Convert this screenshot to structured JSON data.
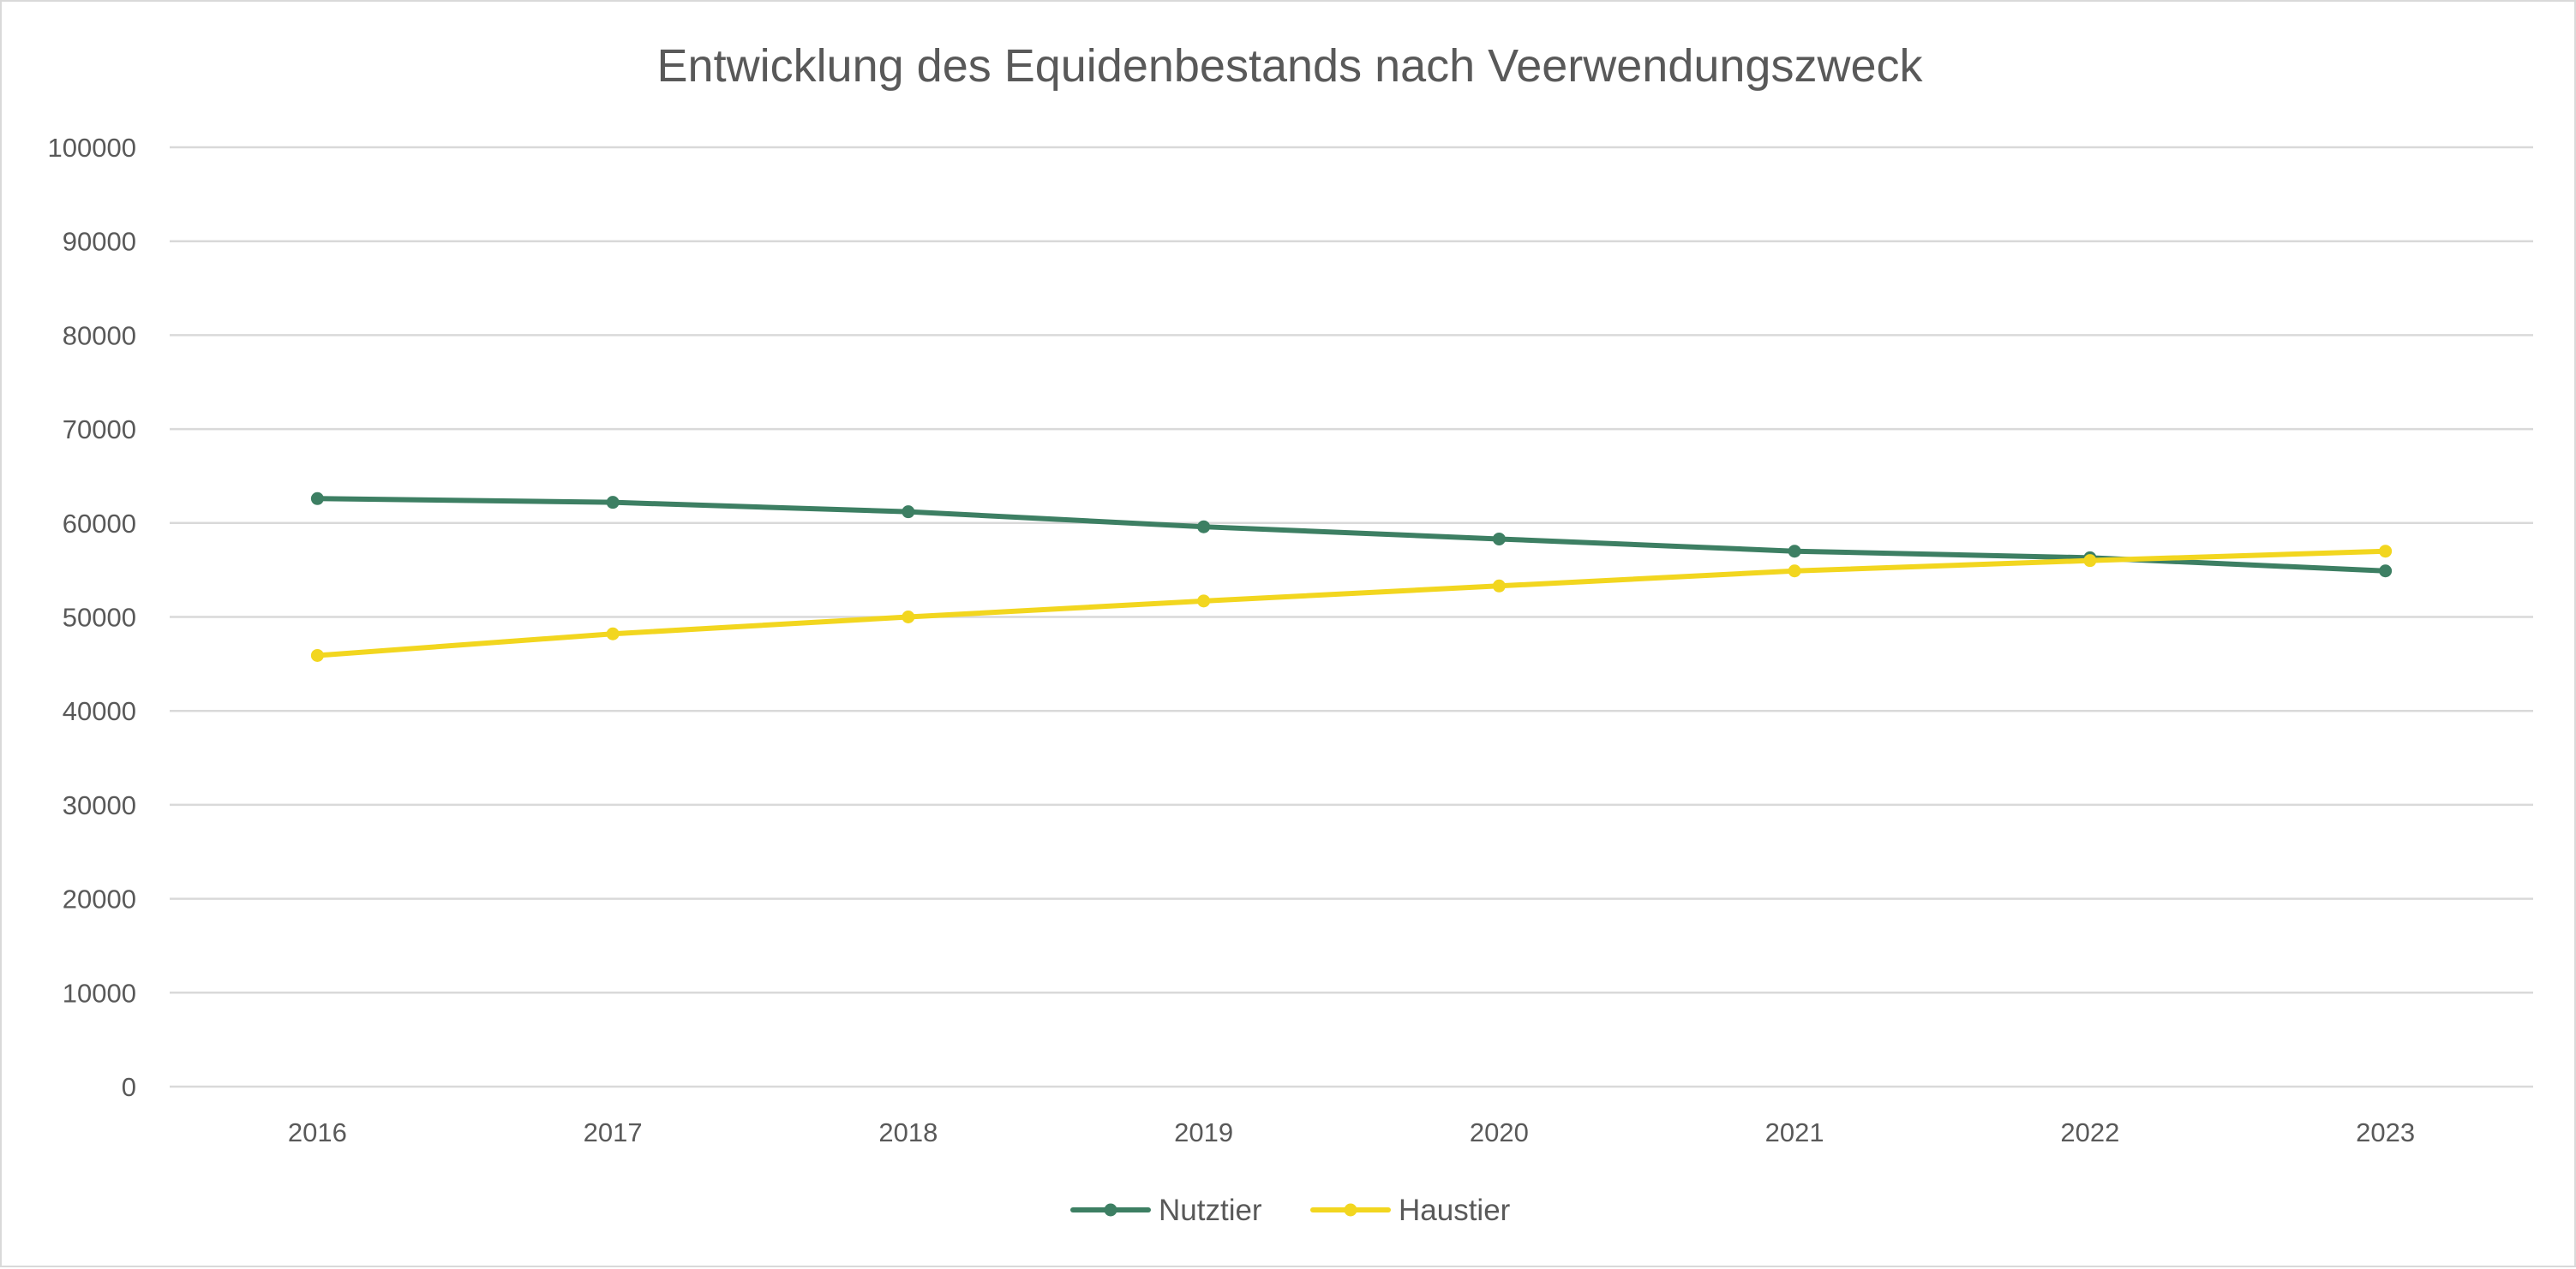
{
  "chart_data": {
    "type": "line",
    "title": "Entwicklung des Equidenbestands nach Veerwendungszweck",
    "xlabel": "",
    "ylabel": "",
    "categories": [
      "2016",
      "2017",
      "2018",
      "2019",
      "2020",
      "2021",
      "2022",
      "2023"
    ],
    "ylim": [
      0,
      100000
    ],
    "yticks": [
      "0",
      "10000",
      "20000",
      "30000",
      "40000",
      "50000",
      "60000",
      "70000",
      "80000",
      "90000",
      "100000"
    ],
    "grid": true,
    "legend_position": "bottom",
    "series": [
      {
        "name": "Nutztier",
        "color": "#3d7f63",
        "values": [
          62600,
          62200,
          61200,
          59600,
          58300,
          57000,
          56300,
          54900
        ]
      },
      {
        "name": "Haustier",
        "color": "#f2d61f",
        "values": [
          45900,
          48200,
          50000,
          51700,
          53300,
          54900,
          56000,
          57000
        ]
      }
    ]
  }
}
